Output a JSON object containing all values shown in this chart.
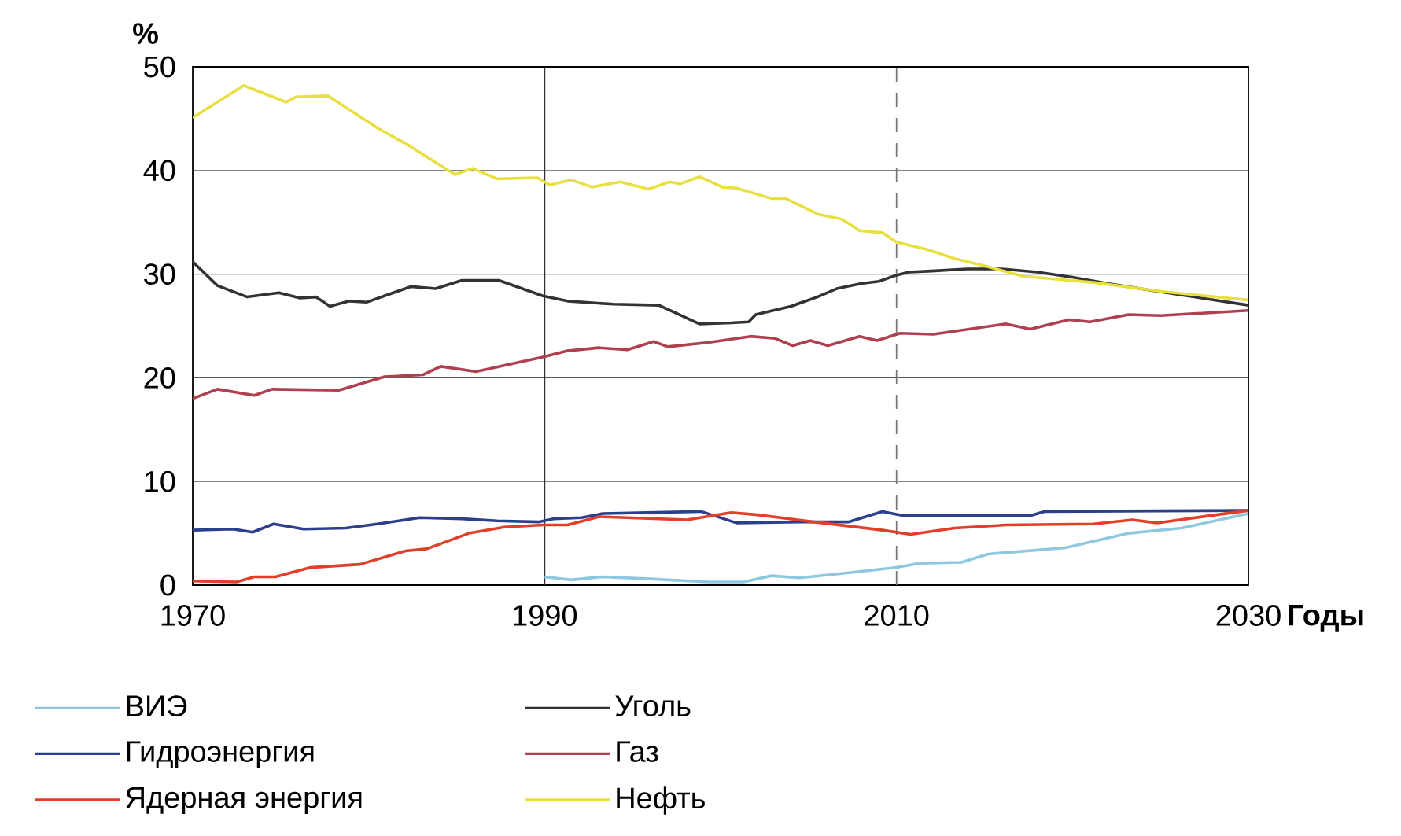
{
  "chart_data": {
    "type": "line",
    "ylabel": "%",
    "xlabel": "Годы",
    "xlim": [
      1970,
      2030
    ],
    "ylim": [
      0,
      50
    ],
    "xticks": [
      1970,
      1990,
      2010,
      2030
    ],
    "yticks": [
      0,
      10,
      20,
      30,
      40,
      50
    ],
    "grid": "y",
    "legend": "bottom",
    "ref_lines": [
      {
        "axis": "x",
        "value": 1990,
        "line_style": "solid",
        "color": "#333333"
      },
      {
        "axis": "x",
        "value": 2010,
        "line_style": "dashed",
        "color": "#777777"
      }
    ],
    "series": [
      {
        "name": "ВИЭ",
        "color": "#8ec8e0",
        "x": [
          1990,
          1991.5,
          1993.3,
          1996,
          1999.3,
          2001.3,
          2002.9,
          2004.5,
          2007.3,
          2010,
          2011.3,
          2013.7,
          2015.2,
          2019.6,
          2023.2,
          2026.2,
          2030
        ],
        "values": [
          0.8,
          0.5,
          0.8,
          0.6,
          0.3,
          0.3,
          0.9,
          0.7,
          1.2,
          1.7,
          2.1,
          2.2,
          3.0,
          3.6,
          5.0,
          5.5,
          6.9
        ]
      },
      {
        "name": "Гидроэнергия",
        "color": "#2b3f8c",
        "x": [
          1970,
          1972.3,
          1973.4,
          1974.6,
          1976.3,
          1978.7,
          1980.5,
          1982.9,
          1985.3,
          1987.3,
          1989.7,
          1990.5,
          1992.1,
          1993.3,
          1998.9,
          2000.9,
          2004.9,
          2007.3,
          2009.2,
          2010.4,
          2017.6,
          2018.4,
          2030
        ],
        "values": [
          5.3,
          5.4,
          5.1,
          5.9,
          5.4,
          5.5,
          5.9,
          6.5,
          6.4,
          6.2,
          6.1,
          6.4,
          6.5,
          6.9,
          7.1,
          6.0,
          6.1,
          6.1,
          7.1,
          6.7,
          6.7,
          7.1,
          7.2
        ]
      },
      {
        "name": "Ядерная энергия",
        "color": "#e0402a",
        "x": [
          1970,
          1972.5,
          1973.5,
          1974.7,
          1976.7,
          1979.5,
          1982.1,
          1983.3,
          1985.7,
          1987.7,
          1989.9,
          1991.3,
          1993.1,
          1998.1,
          2000.6,
          2002,
          2005.3,
          2009.2,
          2010.8,
          2013.3,
          2016.2,
          2021.2,
          2023.4,
          2024.8,
          2030
        ],
        "values": [
          0.4,
          0.3,
          0.8,
          0.8,
          1.7,
          2.0,
          3.3,
          3.5,
          5.0,
          5.6,
          5.8,
          5.8,
          6.6,
          6.3,
          7.0,
          6.8,
          6.1,
          5.3,
          4.9,
          5.5,
          5.8,
          5.9,
          6.3,
          6.0,
          7.2
        ]
      },
      {
        "name": "Уголь",
        "color": "#333333",
        "x": [
          1970,
          1971.4,
          1973.1,
          1974.9,
          1976.1,
          1977,
          1977.8,
          1978.9,
          1979.9,
          1982.4,
          1983.8,
          1985.3,
          1987.4,
          1989.9,
          1991.3,
          1993.9,
          1996.5,
          1998.8,
          2000.6,
          2001.6,
          2002,
          2003,
          2004,
          2005.5,
          2006.6,
          2008,
          2009,
          2010,
          2010.7,
          2012,
          2014,
          2016,
          2018,
          2020,
          2022,
          2025,
          2030
        ],
        "values": [
          31.2,
          28.9,
          27.8,
          28.2,
          27.7,
          27.8,
          26.9,
          27.4,
          27.3,
          28.8,
          28.6,
          29.4,
          29.4,
          27.9,
          27.4,
          27.1,
          27.0,
          25.2,
          25.3,
          25.4,
          26.1,
          26.5,
          26.9,
          27.8,
          28.6,
          29.1,
          29.3,
          29.9,
          30.2,
          30.3,
          30.5,
          30.5,
          30.2,
          29.7,
          29.1,
          28.3,
          27.0
        ]
      },
      {
        "name": "Газ",
        "color": "#b04050",
        "x": [
          1970,
          1971.4,
          1973.5,
          1974.5,
          1978.3,
          1980.9,
          1983.1,
          1984.1,
          1986.1,
          1989.9,
          1991.3,
          1993.1,
          1994.7,
          1996.2,
          1997,
          1999.3,
          2001.7,
          2003.1,
          2004.1,
          2005.1,
          2006.1,
          2007.9,
          2008.9,
          2010.2,
          2012.1,
          2016.2,
          2017.6,
          2019.8,
          2021,
          2023.2,
          2025,
          2030
        ],
        "values": [
          18.0,
          18.9,
          18.3,
          18.9,
          18.8,
          20.1,
          20.3,
          21.1,
          20.6,
          22.0,
          22.6,
          22.9,
          22.7,
          23.5,
          23.0,
          23.4,
          24.0,
          23.8,
          23.1,
          23.6,
          23.1,
          24.0,
          23.6,
          24.3,
          24.2,
          25.2,
          24.7,
          25.6,
          25.4,
          26.1,
          26.0,
          26.5
        ]
      },
      {
        "name": "Нефть",
        "color": "#e8e040",
        "x": [
          1970,
          1972.9,
          1975.3,
          1975.9,
          1977.7,
          1980.5,
          1982.3,
          1984.9,
          1985.9,
          1987.3,
          1989.6,
          1990.3,
          1991.5,
          1992.7,
          1994.3,
          1995.9,
          1997.1,
          1997.7,
          1998.8,
          2000.1,
          2000.9,
          2002.9,
          2003.7,
          2005.5,
          2006.9,
          2007.9,
          2009.2,
          2010,
          2011.7,
          2013.3,
          2015.2,
          2017.2,
          2019.2,
          2021.2,
          2025.2,
          2030
        ],
        "values": [
          45.1,
          48.2,
          46.6,
          47.1,
          47.2,
          44.1,
          42.4,
          39.6,
          40.2,
          39.2,
          39.3,
          38.6,
          39.1,
          38.4,
          38.9,
          38.2,
          38.9,
          38.7,
          39.4,
          38.4,
          38.3,
          37.3,
          37.3,
          35.8,
          35.3,
          34.2,
          34.0,
          33.1,
          32.4,
          31.5,
          30.7,
          29.8,
          29.5,
          29.2,
          28.3,
          27.5
        ]
      }
    ]
  }
}
